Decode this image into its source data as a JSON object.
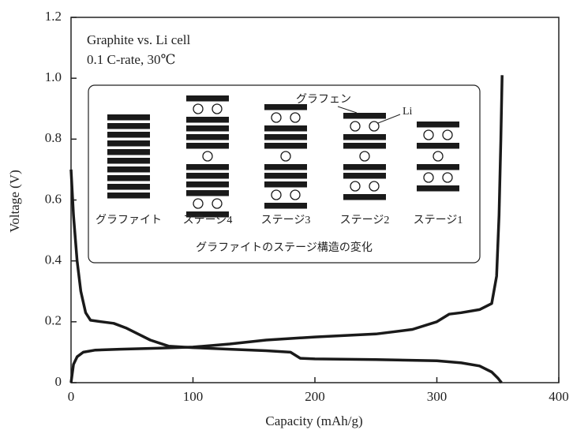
{
  "chart_data": {
    "type": "line",
    "x_label": "Capacity (mAh/g)",
    "y_label": "Voltage (V)",
    "xlim": [
      0,
      400
    ],
    "xticks": [
      0,
      100,
      200,
      300,
      400
    ],
    "ylim": [
      0,
      1.2
    ],
    "yticks": [
      0,
      0.2,
      0.4,
      0.6,
      {
        "value": 0.8,
        "label": "0.8"
      },
      {
        "value": 1,
        "label": "1.0"
      },
      1.2
    ],
    "color": "#1a1a1a",
    "annotations": [
      "Graphite vs. Li cell",
      "0.1 C-rate, 30℃"
    ],
    "inset": {
      "stages": [
        "グラファイト",
        "ステージ4",
        "ステージ3",
        "ステージ2",
        "ステージ1"
      ],
      "graphene_label": "グラフェン",
      "li_label": "Li",
      "caption": "グラファイトのステージ構造の変化"
    },
    "series": [
      {
        "x": [
          0,
          2,
          5,
          8,
          12,
          16,
          25,
          35,
          45,
          55,
          65,
          80,
          100,
          130,
          160,
          180,
          188,
          200,
          250,
          300,
          320,
          335,
          345,
          350,
          353
        ],
        "values": [
          0.7,
          0.55,
          0.4,
          0.3,
          0.23,
          0.205,
          0.2,
          0.195,
          0.18,
          0.16,
          0.14,
          0.12,
          0.115,
          0.11,
          0.105,
          0.1,
          0.08,
          0.078,
          0.076,
          0.072,
          0.065,
          0.055,
          0.035,
          0.015,
          0
        ]
      },
      {
        "x": [
          0,
          2,
          5,
          10,
          20,
          40,
          70,
          100,
          130,
          160,
          200,
          250,
          280,
          300,
          310,
          320,
          335,
          345,
          349,
          351,
          352.5,
          353.5
        ],
        "values": [
          0,
          0.06,
          0.085,
          0.1,
          0.107,
          0.11,
          0.113,
          0.117,
          0.127,
          0.14,
          0.15,
          0.16,
          0.175,
          0.2,
          0.225,
          0.23,
          0.24,
          0.26,
          0.35,
          0.55,
          0.8,
          1.01
        ]
      }
    ]
  }
}
